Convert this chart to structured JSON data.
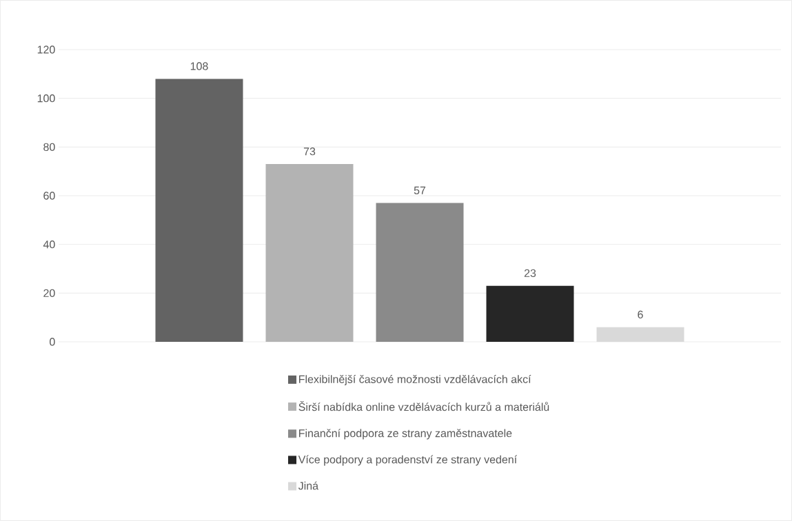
{
  "chart_data": {
    "type": "bar",
    "categories": [
      null
    ],
    "series": [
      {
        "name": "Flexibilnější časové možnosti vzdělávacích akcí",
        "color": "#636363",
        "values": [
          108
        ]
      },
      {
        "name": "Širší nabídka online vzdělávacích kurzů a materiálů",
        "color": "#b3b3b3",
        "values": [
          73
        ]
      },
      {
        "name": "Finanční podpora ze strany zaměstnavatele",
        "color": "#8a8a8a",
        "values": [
          57
        ]
      },
      {
        "name": "Více podpory a poradenství ze strany vedení",
        "color": "#262626",
        "values": [
          23
        ]
      },
      {
        "name": "Jiná",
        "color": "#d9d9d9",
        "values": [
          6
        ]
      }
    ],
    "ylim": [
      0,
      120
    ],
    "yticks": [
      0,
      20,
      40,
      60,
      80,
      100,
      120
    ],
    "grid": "y",
    "legend": "bottom",
    "data_labels": true
  }
}
